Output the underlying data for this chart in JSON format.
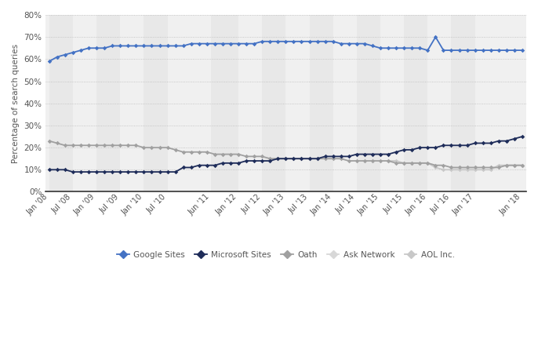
{
  "ylabel": "Percentage of search queries",
  "background_color": "#ffffff",
  "plot_bg_color": "#f0f0f0",
  "band_colors": [
    "#e8e8e8",
    "#f0f0f0"
  ],
  "grid_color": "#ffffff",
  "ylim": [
    0,
    80
  ],
  "yticks": [
    0,
    10,
    20,
    30,
    40,
    50,
    60,
    70,
    80
  ],
  "tick_labels": [
    "Jan '08",
    "Jul '08",
    "Jan '09",
    "Jul '09",
    "Jan '10",
    "Jul '10",
    "Jun '11",
    "Jan '12",
    "Jul '12",
    "Jan '13",
    "Jul '13",
    "Jan '14",
    "Jul '14",
    "Jan '15",
    "Jul '15",
    "Jan '16",
    "Jul '16",
    "Jan '17",
    "Jan '18"
  ],
  "tick_months": [
    0,
    6,
    12,
    18,
    24,
    30,
    41,
    48,
    54,
    60,
    66,
    72,
    78,
    84,
    90,
    96,
    102,
    108,
    120
  ],
  "total_months": 120,
  "google": [
    59,
    61,
    62,
    63,
    64,
    65,
    65,
    65,
    66,
    66,
    66,
    66,
    66,
    66,
    66,
    66,
    66,
    66,
    67,
    67,
    67,
    67,
    67,
    67,
    67,
    67,
    67,
    68,
    68,
    68,
    68,
    68,
    68,
    68,
    68,
    68,
    68,
    67,
    67,
    67,
    67,
    66,
    65,
    65,
    65,
    65,
    65,
    65,
    64,
    70,
    64,
    64,
    64,
    64,
    64,
    64,
    64,
    64,
    64,
    64,
    64
  ],
  "microsoft": [
    10,
    10,
    10,
    9,
    9,
    9,
    9,
    9,
    9,
    9,
    9,
    9,
    9,
    9,
    9,
    9,
    9,
    11,
    11,
    12,
    12,
    12,
    13,
    13,
    13,
    14,
    14,
    14,
    14,
    15,
    15,
    15,
    15,
    15,
    15,
    16,
    16,
    16,
    16,
    17,
    17,
    17,
    17,
    17,
    18,
    19,
    19,
    20,
    20,
    20,
    21,
    21,
    21,
    21,
    22,
    22,
    22,
    23,
    23,
    24,
    25
  ],
  "oath": [
    23,
    22,
    21,
    21,
    21,
    21,
    21,
    21,
    21,
    21,
    21,
    21,
    20,
    20,
    20,
    20,
    19,
    18,
    18,
    18,
    18,
    17,
    17,
    17,
    17,
    16,
    16,
    16,
    15,
    15,
    15,
    15,
    15,
    15,
    15,
    15,
    15,
    15,
    14,
    14,
    14,
    14,
    14,
    14,
    13,
    13,
    13,
    13,
    13,
    12,
    12,
    11,
    11,
    11,
    11,
    11,
    11,
    11,
    12,
    12,
    12
  ],
  "aol": [
    null,
    null,
    null,
    null,
    null,
    null,
    null,
    null,
    null,
    null,
    null,
    null,
    null,
    null,
    null,
    null,
    null,
    null,
    null,
    null,
    null,
    null,
    null,
    null,
    null,
    null,
    null,
    null,
    null,
    null,
    null,
    null,
    null,
    null,
    null,
    null,
    null,
    null,
    null,
    null,
    null,
    null,
    null,
    14,
    14,
    13,
    13,
    13,
    13,
    11,
    10,
    10,
    10,
    10,
    10,
    10,
    10,
    12,
    12,
    12,
    12
  ],
  "n_points": 61,
  "google_color": "#4472c4",
  "microsoft_color": "#1f2d5a",
  "oath_color": "#a0a0a0",
  "aol_color": "#c8c8c8",
  "legend_names": [
    "Google Sites",
    "Microsoft Sites",
    "Oath",
    "Ask Network",
    "AOL Inc."
  ],
  "legend_colors": [
    "#4472c4",
    "#1f2d5a",
    "#a0a0a0",
    "#d8d8d8",
    "#c8c8c8"
  ]
}
